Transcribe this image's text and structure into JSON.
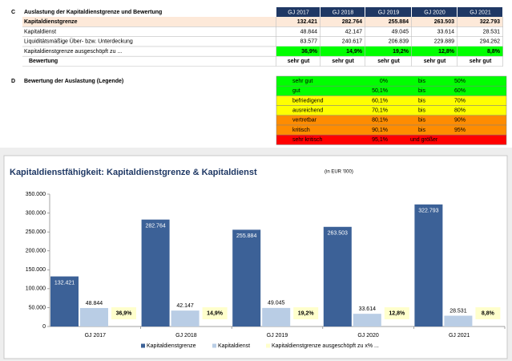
{
  "section_c": {
    "letter": "C",
    "title": "Auslastung der Kapitaldienstgrenze und Bewertung",
    "columns": [
      "GJ 2017",
      "GJ 2018",
      "GJ 2019",
      "GJ 2020",
      "GJ 2021"
    ],
    "rows": [
      {
        "label": "Kapitaldienstgrenze",
        "values": [
          "132.421",
          "282.764",
          "255.884",
          "263.503",
          "322.793"
        ]
      },
      {
        "label": "Kapitaldienst",
        "values": [
          "48.844",
          "42.147",
          "49.045",
          "33.614",
          "28.531"
        ]
      },
      {
        "label": "Liquiditätsmäßige Über- bzw. Unterdeckung",
        "values": [
          "83.577",
          "240.617",
          "206.839",
          "229.889",
          "294.262"
        ]
      },
      {
        "label": "Kapitaldienstgrenze ausgeschöpft zu ...",
        "values": [
          "36,9%",
          "14,9%",
          "19,2%",
          "12,8%",
          "8,8%"
        ]
      },
      {
        "label": "Bewertung",
        "values": [
          "sehr gut",
          "sehr gut",
          "sehr gut",
          "sehr gut",
          "sehr gut"
        ]
      }
    ]
  },
  "section_d": {
    "letter": "D",
    "title": "Bewertung der Auslastung  (Legende)",
    "rows": [
      [
        "sehr gut",
        "0%",
        "bis",
        "50%"
      ],
      [
        "gut",
        "50,1%",
        "bis",
        "60%"
      ],
      [
        "befriedigend",
        "60,1%",
        "bis",
        "70%"
      ],
      [
        "ausreichend",
        "70,1%",
        "bis",
        "80%"
      ],
      [
        "vertretbar",
        "80,1%",
        "bis",
        "90%"
      ],
      [
        "kritisch",
        "90,1%",
        "bis",
        "95%"
      ],
      [
        "sehr kritisch",
        "95,1%",
        "und größer"
      ]
    ],
    "colors": [
      "#00ff00",
      "#00ff00",
      "#ffff00",
      "#ffff00",
      "#ff8c00",
      "#ff8c00",
      "#ff0000"
    ]
  },
  "chart_data": {
    "type": "bar",
    "title": "Kapitaldienstfähigkeit:  Kapitaldienstgrenze & Kapitaldienst",
    "subtitle": "(in EUR '000)",
    "categories": [
      "GJ 2017",
      "GJ 2018",
      "GJ 2019",
      "GJ 2020",
      "GJ 2021"
    ],
    "series": [
      {
        "name": "Kapitaldienstgrenze",
        "color": "#3c6197",
        "values": [
          132421,
          282764,
          255884,
          263503,
          322793
        ],
        "value_labels": [
          "132.421",
          "282.764",
          "255.884",
          "263.503",
          "322.793"
        ]
      },
      {
        "name": "Kapitaldienst",
        "color": "#b9cde5",
        "values": [
          48844,
          42147,
          49045,
          33614,
          28531
        ],
        "value_labels": [
          "48.844",
          "42.147",
          "49.045",
          "33.614",
          "28.531"
        ]
      },
      {
        "name": "Kapitaldienstgrenze ausgeschöpft zu x% ...",
        "color": "#ffffcc",
        "values": [
          36.9,
          14.9,
          19.2,
          12.8,
          8.8
        ],
        "value_labels": [
          "36,9%",
          "14,9%",
          "19,2%",
          "12,8%",
          "8,8%"
        ]
      }
    ],
    "ylim": [
      0,
      350000
    ],
    "yticks": [
      0,
      {
        "value": 50000,
        "label": "50.000"
      },
      {
        "value": 100000,
        "label": "100.000"
      },
      {
        "value": 150000,
        "label": "150.000"
      },
      {
        "value": 200000,
        "label": "200.000"
      },
      {
        "value": 250000,
        "label": "250.000"
      },
      {
        "value": 300000,
        "label": "300.000"
      },
      {
        "value": 350000,
        "label": "350.000"
      }
    ],
    "grid": false
  }
}
